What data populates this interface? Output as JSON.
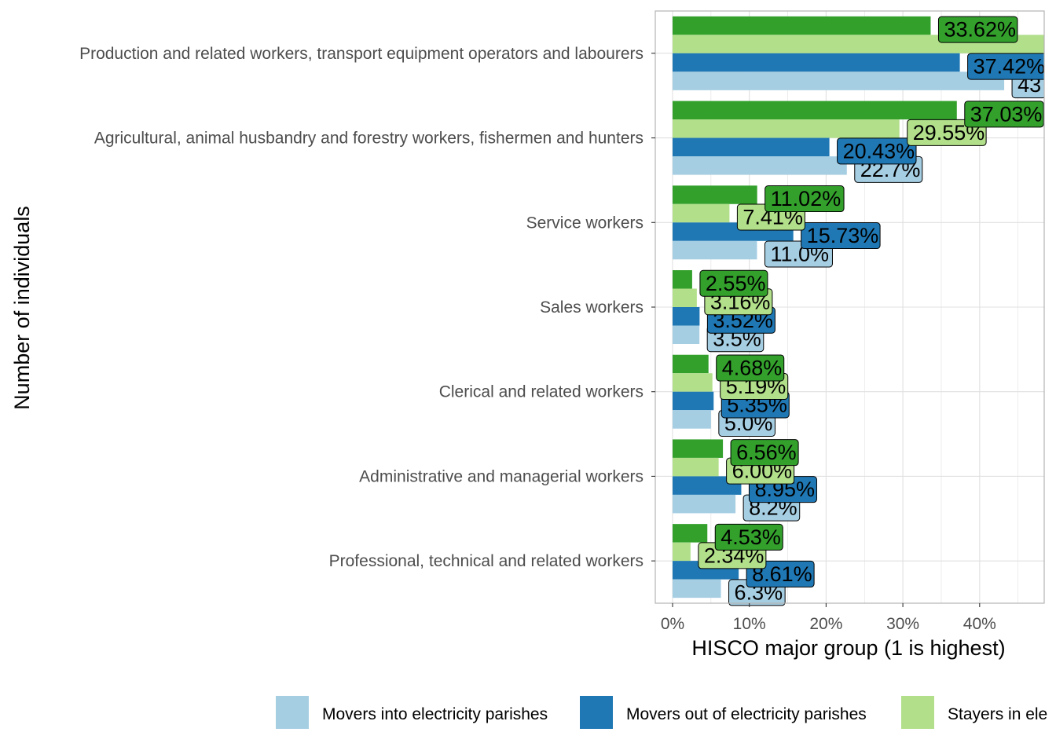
{
  "chart_data": {
    "type": "bar",
    "orientation": "horizontal",
    "xlabel": "HISCO major group (1 is highest)",
    "ylabel": "Number of individuals",
    "xlim": [
      0,
      48
    ],
    "x_ticks": [
      "0%",
      "10%",
      "20%",
      "30%",
      "40%"
    ],
    "x_tick_values": [
      0,
      10,
      20,
      30,
      40
    ],
    "grid": true,
    "legend_position": "bottom",
    "categories": [
      "Production and related workers, transport equipment operators and labourers",
      "Agricultural, animal husbandry and forestry workers, fishermen and hunters",
      "Service workers",
      "Sales workers",
      "Clerical and related workers",
      "Administrative and managerial workers",
      "Professional, technical and related workers"
    ],
    "series": [
      {
        "name": "Movers into electricity parishes",
        "color": "#a6cee3",
        "values": [
          43.2,
          22.7,
          11.0,
          3.5,
          5.0,
          8.2,
          6.3
        ],
        "labels": [
          "43",
          "22.7%",
          "11.0%",
          "3.5%",
          "5.0%",
          "8.2%",
          "6.3%"
        ]
      },
      {
        "name": "Movers out of electricity parishes",
        "color": "#1f78b4",
        "values": [
          37.42,
          20.43,
          15.73,
          3.52,
          5.35,
          8.95,
          8.61
        ],
        "labels": [
          "37.42%",
          "20.43%",
          "15.73%",
          "3.52%",
          "5.35%",
          "8.95%",
          "8.61%"
        ]
      },
      {
        "name": "Stayers in ele",
        "color": "#b2df8a",
        "values": [
          48.5,
          29.55,
          7.41,
          3.16,
          5.19,
          6.0,
          2.34
        ],
        "labels": [
          "",
          "29.55%",
          "7.41%",
          "3.16%",
          "5.19%",
          "6.00%",
          "2.34%"
        ]
      },
      {
        "name": "",
        "color": "#33a02c",
        "values": [
          33.62,
          37.03,
          11.02,
          2.55,
          4.68,
          6.56,
          4.53
        ],
        "labels": [
          "33.62%",
          "37.03%",
          "11.02%",
          "2.55%",
          "4.68%",
          "6.56%",
          "4.53%"
        ]
      }
    ],
    "legend_entries": [
      {
        "name": "Movers into electricity parishes",
        "color": "#a6cee3"
      },
      {
        "name": "Movers out of electricity parishes",
        "color": "#1f78b4"
      },
      {
        "name": "Stayers in ele",
        "color": "#b2df8a"
      }
    ]
  }
}
